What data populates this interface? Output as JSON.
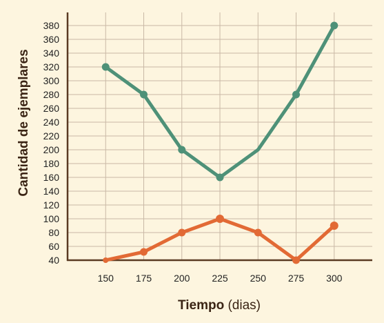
{
  "chart_data": {
    "type": "line",
    "x": [
      150,
      175,
      200,
      225,
      250,
      275,
      300
    ],
    "series": [
      {
        "values": [
          320,
          280,
          200,
          160,
          200,
          280,
          380
        ],
        "color": "#4e9178",
        "markers": [
          true,
          true,
          true,
          true,
          false,
          true,
          true
        ]
      },
      {
        "values": [
          40,
          52,
          80,
          100,
          80,
          40,
          90
        ],
        "color": "#e26a35",
        "markers": [
          true,
          true,
          true,
          true,
          true,
          true,
          true
        ]
      }
    ],
    "x_ticks": [
      "150",
      "175",
      "200",
      "225",
      "250",
      "275",
      "300"
    ],
    "y_ticks": [
      "40",
      "60",
      "80",
      "100",
      "120",
      "140",
      "160",
      "180",
      "200",
      "220",
      "240",
      "260",
      "280",
      "300",
      "320",
      "340",
      "360",
      "380"
    ],
    "xlim": [
      125,
      325
    ],
    "ylim": [
      40,
      380
    ],
    "ylabel": "Cantidad de ejemplares",
    "xlabel_bold": "Tiempo",
    "xlabel_rest": " (dias)",
    "grid": true,
    "colors": {
      "background": "#fdf5df",
      "grid": "#c9b8a5",
      "axis": "#5a3a22"
    }
  }
}
